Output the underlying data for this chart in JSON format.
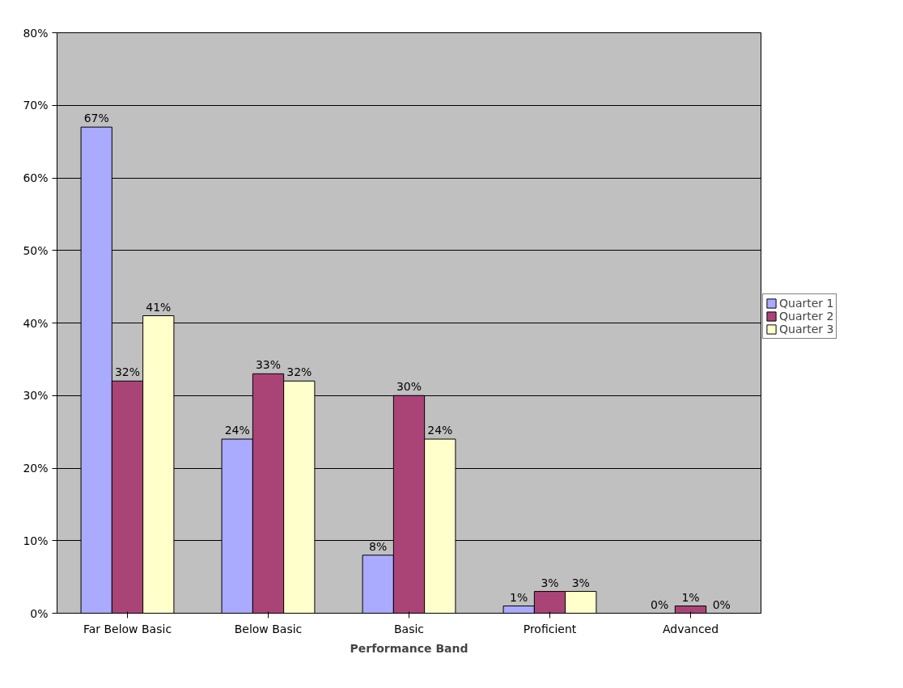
{
  "chart_data": {
    "type": "bar",
    "xlabel": "Performance Band",
    "categories": [
      "Far Below Basic",
      "Below Basic",
      "Basic",
      "Proficient",
      "Advanced"
    ],
    "series": [
      {
        "name": "Quarter 1",
        "color": "#aaaaff",
        "values": [
          67,
          24,
          8,
          1,
          0
        ],
        "value_labels": [
          "67%",
          "24%",
          "8%",
          "1%",
          "0%"
        ]
      },
      {
        "name": "Quarter 2",
        "color": "#aa4477",
        "values": [
          32,
          33,
          30,
          3,
          1
        ],
        "value_labels": [
          "32%",
          "33%",
          "30%",
          "3%",
          "1%"
        ]
      },
      {
        "name": "Quarter 3",
        "color": "#ffffcc",
        "values": [
          41,
          32,
          24,
          3,
          0
        ],
        "value_labels": [
          "41%",
          "32%",
          "24%",
          "3%",
          "0%"
        ]
      }
    ],
    "ylim": [
      0,
      80
    ],
    "yticks": [
      {
        "value": 0,
        "label": "0%"
      },
      {
        "value": 10,
        "label": "10%"
      },
      {
        "value": 20,
        "label": "20%"
      },
      {
        "value": 30,
        "label": "30%"
      },
      {
        "value": 40,
        "label": "40%"
      },
      {
        "value": 50,
        "label": "50%"
      },
      {
        "value": 60,
        "label": "60%"
      },
      {
        "value": 70,
        "label": "70%"
      },
      {
        "value": 80,
        "label": "80%"
      }
    ],
    "grid": "y",
    "legend": "right"
  }
}
